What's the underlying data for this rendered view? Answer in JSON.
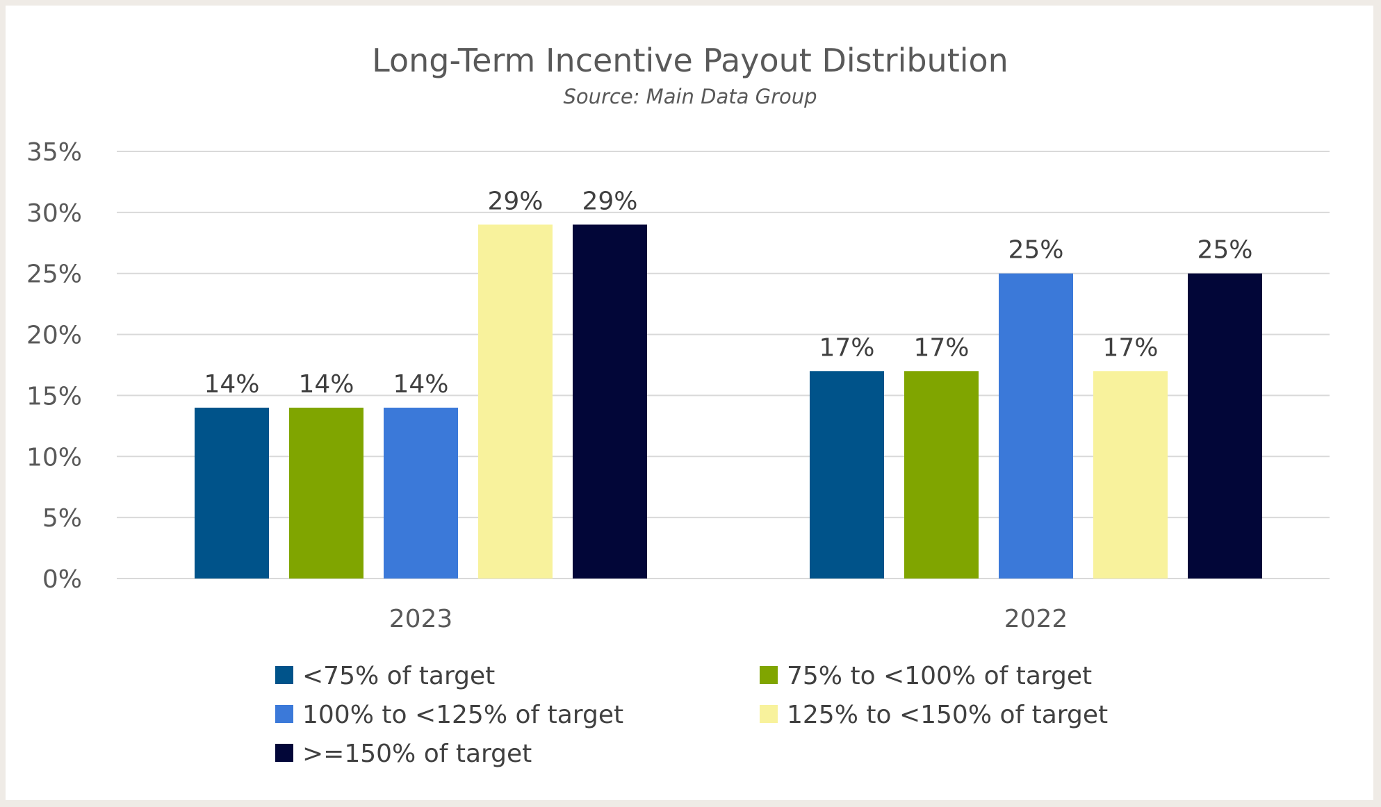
{
  "chart_data": {
    "type": "bar",
    "title": "Long-Term Incentive Payout Distribution",
    "subtitle": "Source: Main Data Group",
    "categories": [
      "2023",
      "2022"
    ],
    "series": [
      {
        "name": "<75% of target",
        "color": "#00538a",
        "values": [
          14,
          17
        ]
      },
      {
        "name": "75% to <100% of target",
        "color": "#80a500",
        "values": [
          14,
          17
        ]
      },
      {
        "name": "100% to <125% of target",
        "color": "#3b79d9",
        "values": [
          14,
          25
        ]
      },
      {
        "name": "125% to <150% of target",
        "color": "#f8f29c",
        "values": [
          29,
          17
        ]
      },
      {
        "name": ">=150% of target",
        "color": "#020638",
        "values": [
          29,
          25
        ]
      }
    ],
    "ylim": [
      0,
      35
    ],
    "yticks": [
      0,
      5,
      10,
      15,
      20,
      25,
      30,
      35
    ],
    "ytick_labels": [
      "0%",
      "5%",
      "10%",
      "15%",
      "20%",
      "25%",
      "30%",
      "35%"
    ],
    "data_labels": [
      [
        "14%",
        "17%"
      ],
      [
        "14%",
        "17%"
      ],
      [
        "14%",
        "25%"
      ],
      [
        "29%",
        "17%"
      ],
      [
        "29%",
        "25%"
      ]
    ],
    "xlabel": "",
    "ylabel": "",
    "grid": true,
    "legend_position": "bottom"
  }
}
